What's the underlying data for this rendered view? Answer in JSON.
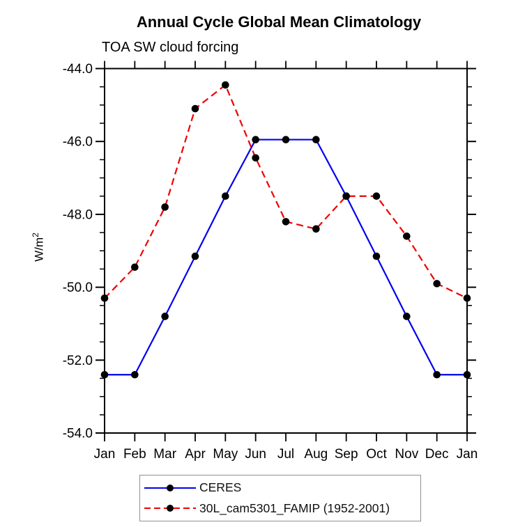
{
  "header": {
    "title": "Annual Cycle Global Mean Climatology",
    "subtitle": "TOA SW cloud forcing"
  },
  "axes": {
    "y_unit_base": "W/m",
    "y_unit_sup": "2"
  },
  "colors": {
    "ceres_line": "#0000ee",
    "famip_line": "#ee0000",
    "marker": "#000000",
    "axis": "#000000",
    "legend_border": "#909090"
  },
  "chart_data": {
    "type": "line",
    "title": "Annual Cycle Global Mean Climatology",
    "subtitle": "TOA SW cloud forcing",
    "xlabel": "",
    "ylabel": "W/m²",
    "ylim": [
      -54.0,
      -44.0
    ],
    "y_major_ticks": [
      -44.0,
      -46.0,
      -48.0,
      -50.0,
      -52.0,
      -54.0
    ],
    "y_minor_step": 0.5,
    "grid": false,
    "legend_position": "bottom",
    "categories": [
      "Jan",
      "Feb",
      "Mar",
      "Apr",
      "May",
      "Jun",
      "Jul",
      "Aug",
      "Sep",
      "Oct",
      "Nov",
      "Dec",
      "Jan"
    ],
    "series": [
      {
        "name": "CERES",
        "style": "solid",
        "color": "#0000ee",
        "marker": "black-dot",
        "values": [
          -52.4,
          -52.4,
          -50.8,
          -49.15,
          -47.5,
          -45.95,
          -45.95,
          -45.95,
          -47.5,
          -49.15,
          -50.8,
          -52.4,
          -52.4
        ]
      },
      {
        "name": "30L_cam5301_FAMIP (1952-2001)",
        "style": "dashed",
        "color": "#ee0000",
        "marker": "black-dot",
        "values": [
          -50.3,
          -49.45,
          -47.8,
          -45.1,
          -44.45,
          -46.45,
          -48.2,
          -48.4,
          -47.5,
          -47.5,
          -48.6,
          -49.9,
          -50.3
        ]
      }
    ]
  }
}
